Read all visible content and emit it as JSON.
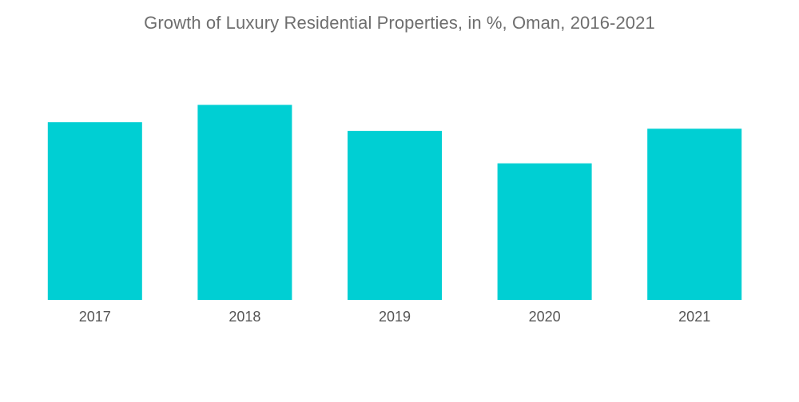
{
  "chart_data": {
    "type": "bar",
    "title": "Growth of Luxury Residential Properties, in %, Oman, 2016-2021",
    "categories": [
      "2017",
      "2018",
      "2019",
      "2020",
      "2021"
    ],
    "values": [
      8.2,
      9.0,
      7.8,
      6.3,
      7.9
    ],
    "ylim": [
      0,
      12
    ],
    "xlabel": "",
    "ylabel": "",
    "grid": false,
    "colors": {
      "bar": "#00cfd3",
      "title": "#6e6e6e",
      "tick": "#555555"
    }
  }
}
